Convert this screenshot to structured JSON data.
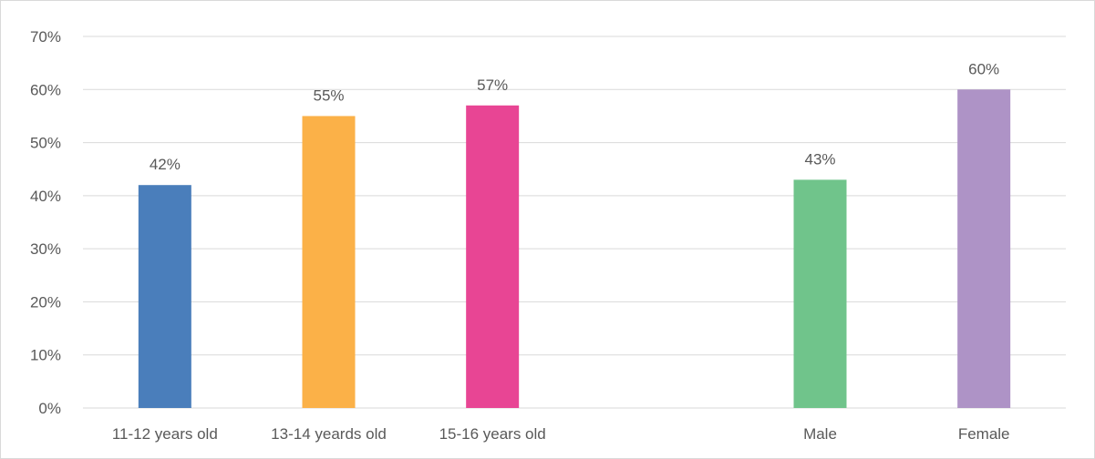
{
  "chart_data": {
    "type": "bar",
    "title": "",
    "xlabel": "",
    "ylabel": "",
    "ylim": [
      0,
      70
    ],
    "y_ticks": [
      0,
      10,
      20,
      30,
      40,
      50,
      60,
      70
    ],
    "y_tick_labels": [
      "0%",
      "10%",
      "20%",
      "30%",
      "40%",
      "50%",
      "60%",
      "70%"
    ],
    "grid": "horizontal",
    "legend": "none",
    "categories": [
      "11-12 years old",
      "13-14 yeards old",
      "15-16 years old",
      "",
      "Male",
      "Female"
    ],
    "values": [
      42,
      55,
      57,
      null,
      43,
      60
    ],
    "data_labels": [
      "42%",
      "55%",
      "57%",
      "",
      "43%",
      "60%"
    ],
    "colors": [
      "#4a7ebb",
      "#fbb148",
      "#e84594",
      "",
      "#70c48b",
      "#ae93c6"
    ]
  }
}
